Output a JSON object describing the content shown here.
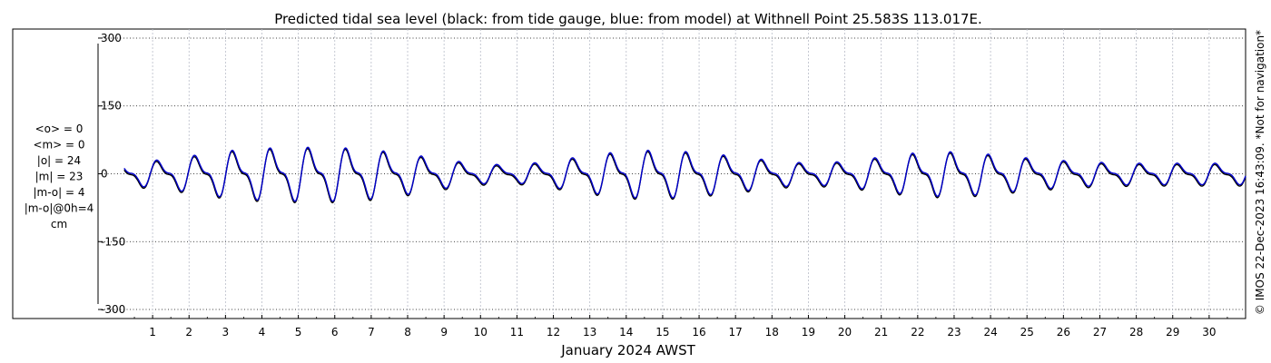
{
  "chart_data": {
    "type": "line",
    "title": "Predicted tidal sea level (black: from tide gauge, blue: from model) at Withnell Point 25.583S 113.017E.",
    "xlabel": "January 2024 AWST",
    "ylabel": "",
    "ylim": [
      -320,
      320
    ],
    "xlim": [
      0.2,
      31.0
    ],
    "yticks": [
      300,
      150,
      0,
      -150,
      -300
    ],
    "xticks": [
      1,
      2,
      3,
      4,
      5,
      6,
      7,
      8,
      9,
      10,
      11,
      12,
      13,
      14,
      15,
      16,
      17,
      18,
      19,
      20,
      21,
      22,
      23,
      24,
      25,
      26,
      27,
      28,
      29,
      30
    ],
    "grid": true,
    "stats": [
      "<o> = 0",
      "<m> = 0",
      "|o| = 24",
      "|m| = 23",
      "|m-o| = 4",
      "|m-o|@0h=4",
      "cm"
    ],
    "side_note": "© IMOS 22-Dec-2023 16:43:09. *Not for navigation*",
    "tide_model": {
      "amplitude_cm": [
        24,
        30,
        40,
        52,
        58,
        60,
        60,
        55,
        45,
        32,
        22,
        20,
        30,
        42,
        52,
        54,
        48,
        40,
        30,
        24,
        28,
        38,
        48,
        50,
        44,
        36,
        30,
        26,
        24,
        24,
        24
      ],
      "amplitude_days": [
        0,
        1,
        2,
        3,
        4,
        5,
        6,
        7,
        8,
        9,
        10,
        11,
        12,
        13,
        14,
        15,
        16,
        17,
        18,
        19,
        20,
        21,
        22,
        23,
        24,
        25,
        26,
        27,
        28,
        29,
        30
      ],
      "period_hours": 24.9,
      "secondary_ratio": 0.45,
      "secondary_period_hours": 12.45
    },
    "series": [
      {
        "name": "black: from tide gauge",
        "color": "#000000"
      },
      {
        "name": "blue: from model",
        "color": "#0000cc"
      }
    ]
  }
}
